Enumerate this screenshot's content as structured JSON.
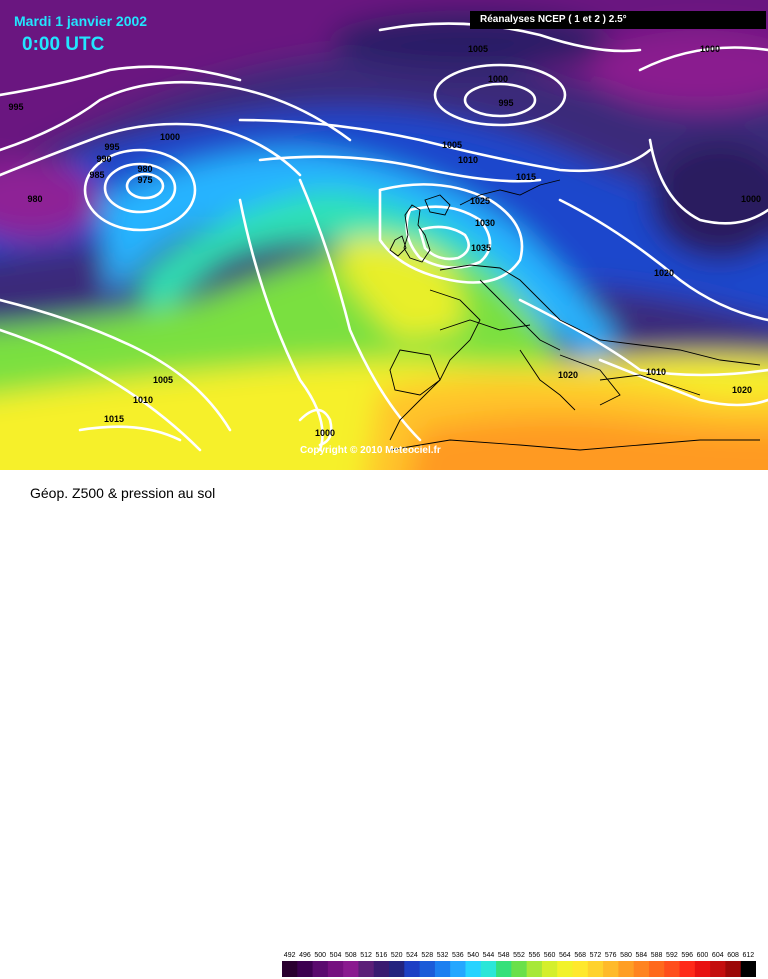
{
  "header": {
    "date": "Mardi 1 janvier 2002",
    "time": "0:00 UTC",
    "source": "Réanalyses NCEP ( 1 et 2 ) 2.5°",
    "copyright": "Copyright © 2010 Meteociel.fr"
  },
  "footer": {
    "title": "Géop. Z500 & pression au sol"
  },
  "legend": {
    "values": [
      "492",
      "496",
      "500",
      "504",
      "508",
      "512",
      "516",
      "520",
      "524",
      "528",
      "532",
      "536",
      "540",
      "544",
      "548",
      "552",
      "556",
      "560",
      "564",
      "568",
      "572",
      "576",
      "580",
      "584",
      "588",
      "592",
      "596",
      "600",
      "604",
      "608",
      "612"
    ],
    "colors": [
      "#2a0030",
      "#3c0050",
      "#5a0a6e",
      "#75107f",
      "#8a1a8f",
      "#5c1f78",
      "#3a1a70",
      "#23237e",
      "#1e3fc4",
      "#1b5bd8",
      "#1c7ff0",
      "#25a7ff",
      "#28d3ff",
      "#2be6d8",
      "#35e07a",
      "#6ae04a",
      "#a7e838",
      "#d4ef2c",
      "#f2f22a",
      "#ffe82d",
      "#ffd22d",
      "#ffba2a",
      "#ff9e24",
      "#ff8420",
      "#ff691c",
      "#ff4e1c",
      "#ff2a1a",
      "#e81212",
      "#c40e0e",
      "#9c0808",
      "#000000"
    ]
  },
  "map": {
    "isobars": [
      {
        "label": "995"
      },
      {
        "label": "1000"
      },
      {
        "label": "995"
      },
      {
        "label": "990"
      },
      {
        "label": "985"
      },
      {
        "label": "980"
      },
      {
        "label": "975"
      },
      {
        "label": "980"
      },
      {
        "label": "1005"
      },
      {
        "label": "1000"
      },
      {
        "label": "995"
      },
      {
        "label": "1005"
      },
      {
        "label": "1010"
      },
      {
        "label": "1015"
      },
      {
        "label": "1025"
      },
      {
        "label": "1030"
      },
      {
        "label": "1035"
      },
      {
        "label": "1000"
      },
      {
        "label": "1000"
      },
      {
        "label": "1020"
      },
      {
        "label": "1020"
      },
      {
        "label": "1010"
      },
      {
        "label": "1020"
      },
      {
        "label": "1005"
      },
      {
        "label": "1010"
      },
      {
        "label": "1015"
      },
      {
        "label": "1000"
      }
    ]
  }
}
